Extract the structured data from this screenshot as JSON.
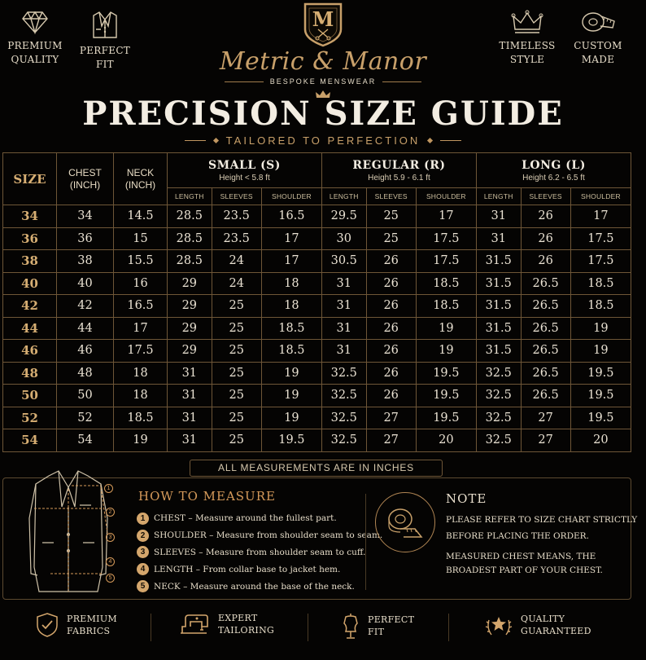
{
  "header": {
    "features_left": [
      {
        "icon": "diamond-icon",
        "label": "PREMIUM\nQUALITY"
      },
      {
        "icon": "suit-jacket-icon",
        "label": "PERFECT\nFIT"
      }
    ],
    "features_right": [
      {
        "icon": "crown-icon",
        "label": "TIMELESS\nSTYLE"
      },
      {
        "icon": "measuring-tape-icon",
        "label": "CUSTOM\nMADE"
      }
    ],
    "logo_letter": "M",
    "brand": "Metric & Manor",
    "tagline": "BESPOKE MENSWEAR",
    "title": "PRECISION SIZE GUIDE",
    "subtitle": "TAILORED TO PERFECTION"
  },
  "table": {
    "col_size": "SIZE",
    "col_chest": "CHEST\n(INCH)",
    "col_neck": "NECK\n(INCH)",
    "groups": [
      {
        "name": "SMALL (S)",
        "sub": "Height < 5.8 ft"
      },
      {
        "name": "REGULAR (R)",
        "sub": "Height 5.9 - 6.1 ft"
      },
      {
        "name": "LONG (L)",
        "sub": "Height 6.2 - 6.5 ft"
      }
    ],
    "sub_cols": [
      "LENGTH",
      "SLEEVES",
      "SHOULDER"
    ],
    "rows": [
      [
        "34",
        "34",
        "14.5",
        "28.5",
        "23.5",
        "16.5",
        "29.5",
        "25",
        "17",
        "31",
        "26",
        "17"
      ],
      [
        "36",
        "36",
        "15",
        "28.5",
        "23.5",
        "17",
        "30",
        "25",
        "17.5",
        "31",
        "26",
        "17.5"
      ],
      [
        "38",
        "38",
        "15.5",
        "28.5",
        "24",
        "17",
        "30.5",
        "26",
        "17.5",
        "31.5",
        "26",
        "17.5"
      ],
      [
        "40",
        "40",
        "16",
        "29",
        "24",
        "18",
        "31",
        "26",
        "18.5",
        "31.5",
        "26.5",
        "18.5"
      ],
      [
        "42",
        "42",
        "16.5",
        "29",
        "25",
        "18",
        "31",
        "26",
        "18.5",
        "31.5",
        "26.5",
        "18.5"
      ],
      [
        "44",
        "44",
        "17",
        "29",
        "25",
        "18.5",
        "31",
        "26",
        "19",
        "31.5",
        "26.5",
        "19"
      ],
      [
        "46",
        "46",
        "17.5",
        "29",
        "25",
        "18.5",
        "31",
        "26",
        "19",
        "31.5",
        "26.5",
        "19"
      ],
      [
        "48",
        "48",
        "18",
        "31",
        "25",
        "19",
        "32.5",
        "26",
        "19.5",
        "32.5",
        "26.5",
        "19.5"
      ],
      [
        "50",
        "50",
        "18",
        "31",
        "25",
        "19",
        "32.5",
        "26",
        "19.5",
        "32.5",
        "26.5",
        "19.5"
      ],
      [
        "52",
        "52",
        "18.5",
        "31",
        "25",
        "19",
        "32.5",
        "27",
        "19.5",
        "32.5",
        "27",
        "19.5"
      ],
      [
        "54",
        "54",
        "19",
        "31",
        "25",
        "19.5",
        "32.5",
        "27",
        "20",
        "32.5",
        "27",
        "20"
      ]
    ]
  },
  "banner": "ALL MEASUREMENTS ARE IN INCHES",
  "how_to_measure": {
    "title": "HOW TO MEASURE",
    "steps": [
      {
        "num": "1",
        "text": "CHEST – Measure around the fullest part."
      },
      {
        "num": "2",
        "text": "SHOULDER – Measure from shoulder seam to seam."
      },
      {
        "num": "3",
        "text": "SLEEVES – Measure from shoulder seam to cuff."
      },
      {
        "num": "4",
        "text": "LENGTH – From collar base to jacket hem."
      },
      {
        "num": "5",
        "text": "NECK – Measure around the base of the neck."
      }
    ],
    "jacket_markers": [
      "1",
      "2",
      "3",
      "4",
      "5"
    ]
  },
  "note": {
    "title": "NOTE",
    "line1": "PLEASE REFER TO SIZE CHART STRICTLY BEFORE PLACING THE ORDER.",
    "line2": "MEASURED CHEST MEANS, THE BROADEST PART OF YOUR CHEST."
  },
  "footer": [
    {
      "icon": "shield-check-icon",
      "label": "PREMIUM\nFABRICS"
    },
    {
      "icon": "sewing-machine-icon",
      "label": "EXPERT\nTAILORING"
    },
    {
      "icon": "dress-form-icon",
      "label": "PERFECT\nFIT"
    },
    {
      "icon": "laurel-star-icon",
      "label": "QUALITY\nGUARANTEED"
    }
  ],
  "colors": {
    "background": "#050403",
    "gold": "#c8a06a",
    "text": "#e6dcc8"
  }
}
